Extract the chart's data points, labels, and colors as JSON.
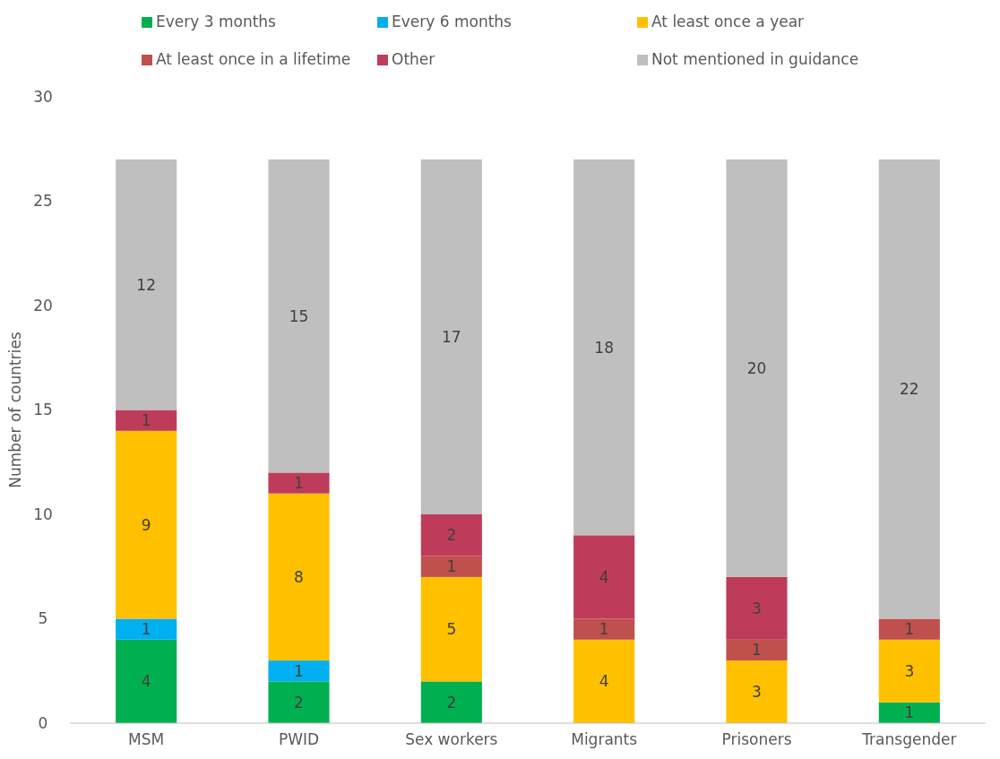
{
  "chart_data": {
    "type": "bar",
    "stacked": true,
    "ylabel": "Number of countries",
    "categories": [
      "MSM",
      "PWID",
      "Sex workers",
      "Migrants",
      "Prisoners",
      "Transgender"
    ],
    "series": [
      {
        "name": "Every 3 months",
        "color": "#00b050",
        "values": [
          4,
          2,
          2,
          null,
          null,
          1
        ]
      },
      {
        "name": "Every 6 months",
        "color": "#00b0f0",
        "values": [
          1,
          1,
          null,
          null,
          null,
          null
        ]
      },
      {
        "name": "At least once a year",
        "color": "#ffc000",
        "values": [
          9,
          8,
          5,
          4,
          3,
          3
        ]
      },
      {
        "name": "At least once in a lifetime",
        "color": "#c0504d",
        "values": [
          null,
          null,
          1,
          1,
          1,
          1
        ]
      },
      {
        "name": "Other",
        "color": "#be3c5a",
        "values": [
          1,
          1,
          2,
          4,
          3,
          null
        ]
      },
      {
        "name": "Not mentioned in guidance",
        "color": "#bfbfbf",
        "values": [
          12,
          15,
          17,
          18,
          20,
          22
        ]
      }
    ],
    "ylim": [
      0,
      30
    ],
    "yticks": [
      0,
      5,
      10,
      15,
      20,
      25,
      30
    ],
    "data_labels": true,
    "legend": "top",
    "grid": false
  }
}
